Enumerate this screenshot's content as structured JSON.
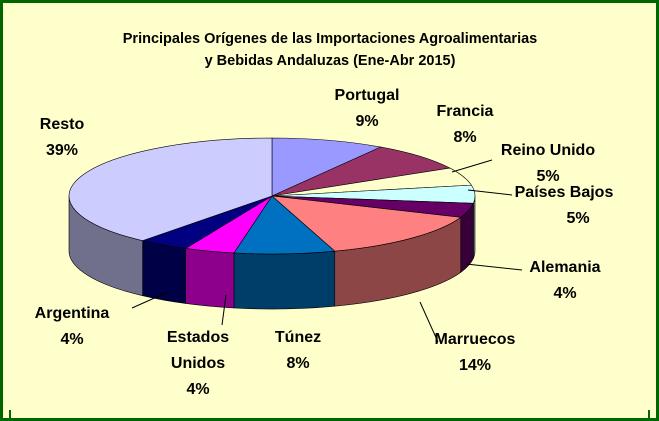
{
  "chart_data": {
    "type": "pie3d",
    "title": [
      "Principales Orígenes de las Importaciones Agroalimentarias",
      "y Bebidas Andaluzas (Ene-Abr 2015)"
    ],
    "categories": [
      "Portugal",
      "Francia",
      "Reino Unido",
      "Países Bajos",
      "Alemania",
      "Marruecos",
      "Túnez",
      "Estados Unidos",
      "Argentina",
      "Resto"
    ],
    "values": [
      9,
      8,
      5,
      5,
      4,
      14,
      8,
      4,
      4,
      39
    ],
    "value_labels": [
      "9%",
      "8%",
      "5%",
      "5%",
      "4%",
      "14%",
      "8%",
      "4%",
      "4%",
      "39%"
    ],
    "colors": [
      "#9999ff",
      "#993366",
      "#ffffcc",
      "#ccffff",
      "#660066",
      "#ff8080",
      "#0070c0",
      "#ff00ff",
      "#000080",
      "#ccccff"
    ]
  }
}
